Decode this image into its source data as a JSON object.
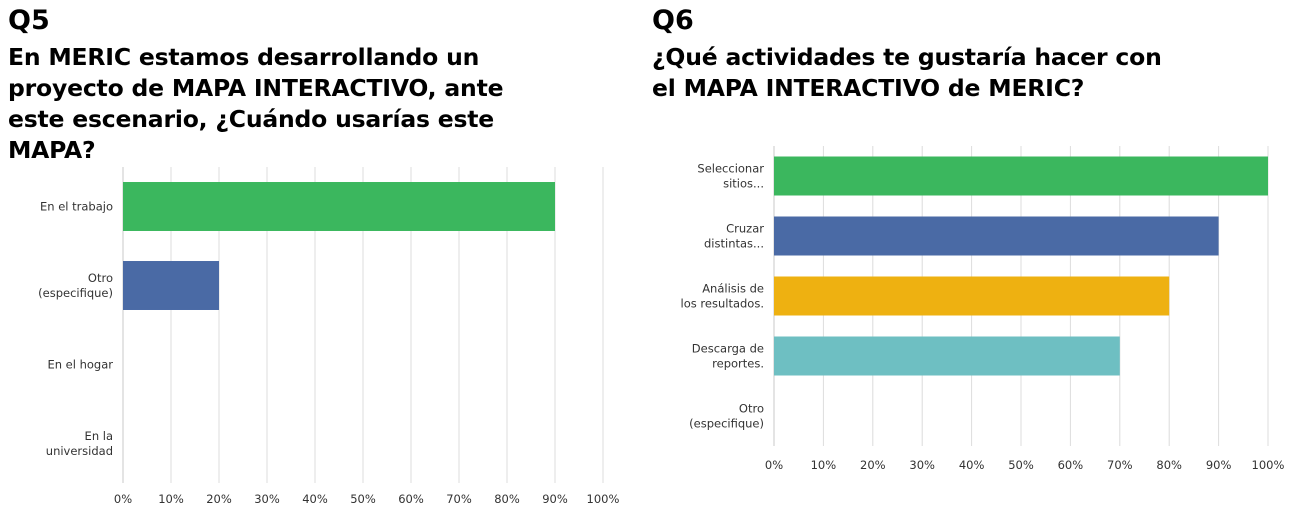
{
  "charts": [
    {
      "number": "Q5",
      "title_lines": [
        "En MERIC estamos desarrollando un",
        "proyecto de MAPA INTERACTIVO, ante",
        "este escenario, ¿Cuándo usarías este",
        "MAPA?"
      ]
    },
    {
      "number": "Q6",
      "title_lines": [
        "¿Qué actividades te gustaría hacer con",
        "el MAPA INTERACTIVO de MERIC?"
      ]
    }
  ],
  "chart_data": [
    {
      "type": "bar",
      "orientation": "horizontal",
      "title": "Q5 En MERIC estamos desarrollando un proyecto de MAPA INTERACTIVO, ante este escenario, ¿Cuándo usarías este MAPA?",
      "categories": [
        [
          "En el trabajo"
        ],
        [
          "Otro",
          "(especifique)"
        ],
        [
          "En el hogar"
        ],
        [
          "En la",
          "universidad"
        ]
      ],
      "values": [
        90,
        20,
        0,
        0
      ],
      "colors": [
        "#3bb75e",
        "#4a6aa5",
        "#eeb111",
        "#6ebfc2"
      ],
      "xlim": [
        0,
        100
      ],
      "ticks": [
        "0%",
        "10%",
        "20%",
        "30%",
        "40%",
        "50%",
        "60%",
        "70%",
        "80%",
        "90%",
        "100%"
      ],
      "grid": true
    },
    {
      "type": "bar",
      "orientation": "horizontal",
      "title": "Q6 ¿Qué actividades te gustaría hacer con el MAPA INTERACTIVO de MERIC?",
      "categories": [
        [
          "Seleccionar",
          "sitios..."
        ],
        [
          "Cruzar",
          "distintas..."
        ],
        [
          "Análisis de",
          "los resultados."
        ],
        [
          "Descarga de",
          "reportes."
        ],
        [
          "Otro",
          "(especifique)"
        ]
      ],
      "values": [
        100,
        90,
        80,
        70,
        0
      ],
      "colors": [
        "#3bb75e",
        "#4a6aa5",
        "#eeb111",
        "#6ebfc2",
        "#999999"
      ],
      "xlim": [
        0,
        100
      ],
      "ticks": [
        "0%",
        "10%",
        "20%",
        "30%",
        "40%",
        "50%",
        "60%",
        "70%",
        "80%",
        "90%",
        "100%"
      ],
      "grid": true
    }
  ]
}
